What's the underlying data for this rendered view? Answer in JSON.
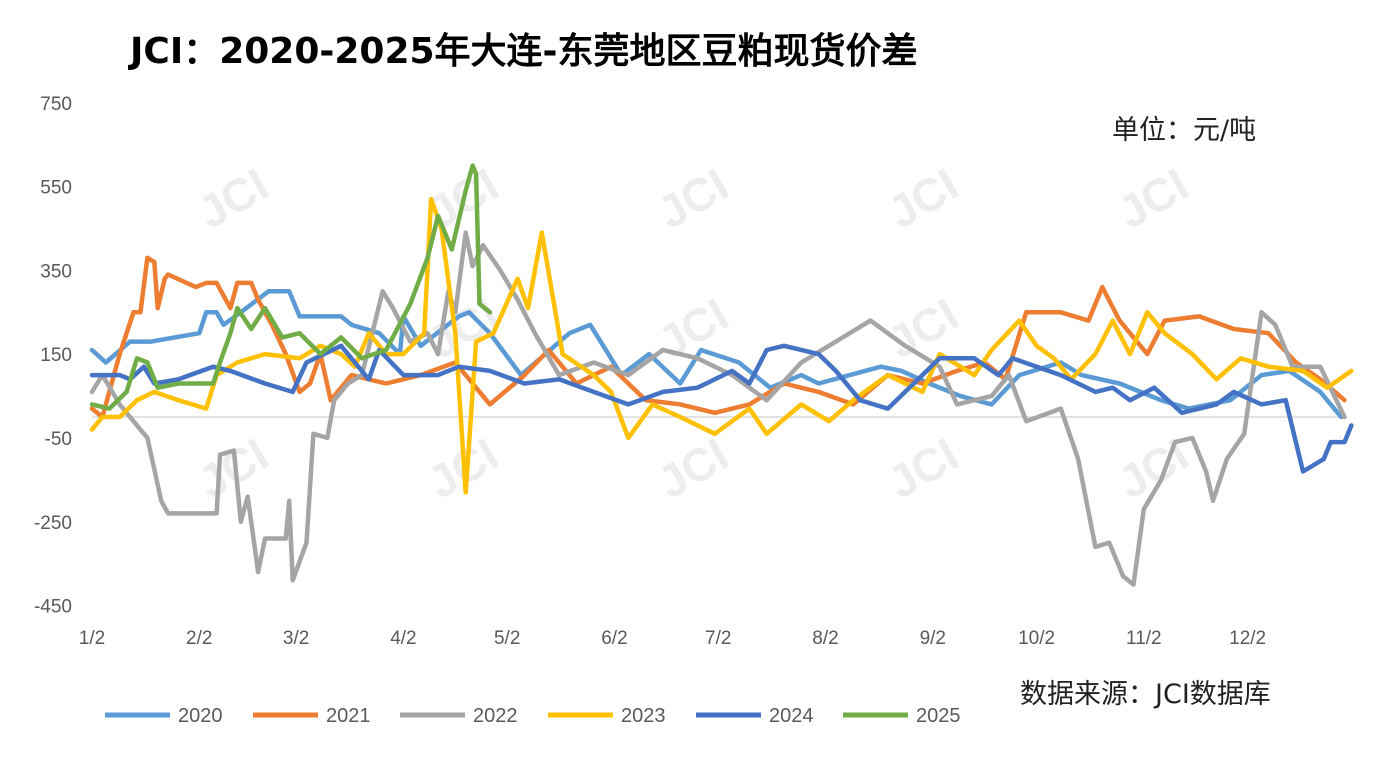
{
  "chart_data": {
    "type": "line",
    "title": "JCI：2020-2025年大连-东莞地区豆粕现货价差",
    "unit_label": "单位：元/吨",
    "source": "数据来源：JCI数据库",
    "watermark": "JCI",
    "xlabel": "",
    "ylabel": "",
    "ylim": [
      -450,
      750
    ],
    "yticks": [
      750,
      550,
      350,
      150,
      -50,
      -250,
      -450
    ],
    "xlim": [
      0,
      364
    ],
    "xticks": [
      {
        "label": "1/2",
        "day": 0
      },
      {
        "label": "2/2",
        "day": 31
      },
      {
        "label": "3/2",
        "day": 59
      },
      {
        "label": "4/2",
        "day": 90
      },
      {
        "label": "5/2",
        "day": 120
      },
      {
        "label": "6/2",
        "day": 151
      },
      {
        "label": "7/2",
        "day": 181
      },
      {
        "label": "8/2",
        "day": 212
      },
      {
        "label": "9/2",
        "day": 243
      },
      {
        "label": "10/2",
        "day": 273
      },
      {
        "label": "11/2",
        "day": 304
      },
      {
        "label": "12/2",
        "day": 334
      }
    ],
    "legend_position": "bottom",
    "series": [
      {
        "name": "2020",
        "color": "#5B9BD5",
        "points": [
          [
            0,
            160
          ],
          [
            4,
            130
          ],
          [
            11,
            180
          ],
          [
            17,
            180
          ],
          [
            31,
            200
          ],
          [
            33,
            250
          ],
          [
            36,
            250
          ],
          [
            38,
            220
          ],
          [
            43,
            250
          ],
          [
            51,
            300
          ],
          [
            57,
            300
          ],
          [
            60,
            240
          ],
          [
            72,
            240
          ],
          [
            75,
            220
          ],
          [
            83,
            200
          ],
          [
            89,
            150
          ],
          [
            90,
            240
          ],
          [
            95,
            170
          ],
          [
            106,
            240
          ],
          [
            109,
            250
          ],
          [
            115,
            200
          ],
          [
            124,
            100
          ],
          [
            138,
            200
          ],
          [
            144,
            220
          ],
          [
            153,
            100
          ],
          [
            161,
            150
          ],
          [
            170,
            80
          ],
          [
            176,
            160
          ],
          [
            187,
            130
          ],
          [
            196,
            70
          ],
          [
            205,
            100
          ],
          [
            210,
            80
          ],
          [
            219,
            100
          ],
          [
            228,
            120
          ],
          [
            234,
            110
          ],
          [
            242,
            80
          ],
          [
            251,
            50
          ],
          [
            260,
            30
          ],
          [
            268,
            100
          ],
          [
            280,
            130
          ],
          [
            286,
            100
          ],
          [
            297,
            80
          ],
          [
            309,
            40
          ],
          [
            317,
            20
          ],
          [
            329,
            40
          ],
          [
            338,
            100
          ],
          [
            346,
            110
          ],
          [
            355,
            60
          ],
          [
            361,
            0
          ]
        ]
      },
      {
        "name": "2021",
        "color": "#ED7D31",
        "points": [
          [
            0,
            20
          ],
          [
            3,
            0
          ],
          [
            8,
            150
          ],
          [
            12,
            250
          ],
          [
            14,
            250
          ],
          [
            16,
            380
          ],
          [
            18,
            370
          ],
          [
            19,
            260
          ],
          [
            21,
            330
          ],
          [
            22,
            340
          ],
          [
            30,
            310
          ],
          [
            33,
            320
          ],
          [
            36,
            320
          ],
          [
            40,
            260
          ],
          [
            42,
            320
          ],
          [
            46,
            320
          ],
          [
            48,
            280
          ],
          [
            52,
            220
          ],
          [
            56,
            150
          ],
          [
            60,
            60
          ],
          [
            63,
            80
          ],
          [
            66,
            150
          ],
          [
            69,
            40
          ],
          [
            75,
            100
          ],
          [
            85,
            80
          ],
          [
            95,
            100
          ],
          [
            105,
            130
          ],
          [
            115,
            30
          ],
          [
            125,
            100
          ],
          [
            132,
            160
          ],
          [
            140,
            80
          ],
          [
            150,
            120
          ],
          [
            160,
            40
          ],
          [
            170,
            30
          ],
          [
            180,
            10
          ],
          [
            190,
            30
          ],
          [
            200,
            80
          ],
          [
            210,
            60
          ],
          [
            220,
            30
          ],
          [
            230,
            100
          ],
          [
            240,
            80
          ],
          [
            250,
            110
          ],
          [
            258,
            130
          ],
          [
            264,
            90
          ],
          [
            270,
            250
          ],
          [
            280,
            250
          ],
          [
            288,
            230
          ],
          [
            292,
            310
          ],
          [
            297,
            230
          ],
          [
            305,
            150
          ],
          [
            310,
            230
          ],
          [
            320,
            240
          ],
          [
            330,
            210
          ],
          [
            340,
            200
          ],
          [
            348,
            130
          ],
          [
            355,
            90
          ],
          [
            362,
            40
          ]
        ]
      },
      {
        "name": "2022",
        "color": "#A5A5A5",
        "points": [
          [
            0,
            60
          ],
          [
            3,
            100
          ],
          [
            8,
            30
          ],
          [
            14,
            -30
          ],
          [
            16,
            -50
          ],
          [
            20,
            -200
          ],
          [
            22,
            -230
          ],
          [
            36,
            -230
          ],
          [
            37,
            -90
          ],
          [
            41,
            -80
          ],
          [
            43,
            -250
          ],
          [
            45,
            -190
          ],
          [
            48,
            -370
          ],
          [
            50,
            -290
          ],
          [
            56,
            -290
          ],
          [
            57,
            -200
          ],
          [
            58,
            -390
          ],
          [
            62,
            -300
          ],
          [
            64,
            -40
          ],
          [
            68,
            -50
          ],
          [
            70,
            40
          ],
          [
            74,
            80
          ],
          [
            78,
            100
          ],
          [
            84,
            300
          ],
          [
            87,
            260
          ],
          [
            92,
            180
          ],
          [
            97,
            200
          ],
          [
            100,
            150
          ],
          [
            103,
            300
          ],
          [
            105,
            250
          ],
          [
            108,
            440
          ],
          [
            110,
            360
          ],
          [
            113,
            410
          ],
          [
            118,
            350
          ],
          [
            123,
            280
          ],
          [
            128,
            200
          ],
          [
            135,
            100
          ],
          [
            145,
            130
          ],
          [
            155,
            100
          ],
          [
            165,
            160
          ],
          [
            175,
            140
          ],
          [
            185,
            100
          ],
          [
            195,
            40
          ],
          [
            205,
            130
          ],
          [
            215,
            180
          ],
          [
            225,
            230
          ],
          [
            235,
            170
          ],
          [
            245,
            120
          ],
          [
            250,
            30
          ],
          [
            260,
            50
          ],
          [
            265,
            100
          ],
          [
            270,
            -10
          ],
          [
            280,
            20
          ],
          [
            285,
            -100
          ],
          [
            290,
            -310
          ],
          [
            294,
            -300
          ],
          [
            298,
            -380
          ],
          [
            301,
            -400
          ],
          [
            304,
            -220
          ],
          [
            309,
            -150
          ],
          [
            313,
            -60
          ],
          [
            318,
            -50
          ],
          [
            322,
            -130
          ],
          [
            324,
            -200
          ],
          [
            328,
            -100
          ],
          [
            333,
            -40
          ],
          [
            338,
            250
          ],
          [
            342,
            220
          ],
          [
            347,
            120
          ],
          [
            355,
            120
          ],
          [
            362,
            0
          ]
        ]
      },
      {
        "name": "2023",
        "color": "#FFC000",
        "points": [
          [
            0,
            -30
          ],
          [
            3,
            0
          ],
          [
            8,
            0
          ],
          [
            13,
            40
          ],
          [
            18,
            60
          ],
          [
            25,
            40
          ],
          [
            33,
            20
          ],
          [
            36,
            100
          ],
          [
            42,
            130
          ],
          [
            50,
            150
          ],
          [
            60,
            140
          ],
          [
            66,
            170
          ],
          [
            72,
            150
          ],
          [
            76,
            120
          ],
          [
            80,
            200
          ],
          [
            85,
            150
          ],
          [
            90,
            150
          ],
          [
            96,
            200
          ],
          [
            98,
            520
          ],
          [
            101,
            450
          ],
          [
            105,
            200
          ],
          [
            108,
            -180
          ],
          [
            111,
            180
          ],
          [
            116,
            200
          ],
          [
            123,
            330
          ],
          [
            126,
            260
          ],
          [
            130,
            440
          ],
          [
            136,
            150
          ],
          [
            145,
            100
          ],
          [
            150,
            60
          ],
          [
            155,
            -50
          ],
          [
            162,
            30
          ],
          [
            170,
            0
          ],
          [
            180,
            -40
          ],
          [
            190,
            20
          ],
          [
            195,
            -40
          ],
          [
            205,
            30
          ],
          [
            213,
            -10
          ],
          [
            220,
            40
          ],
          [
            230,
            100
          ],
          [
            240,
            60
          ],
          [
            245,
            150
          ],
          [
            255,
            100
          ],
          [
            260,
            160
          ],
          [
            268,
            230
          ],
          [
            273,
            170
          ],
          [
            278,
            140
          ],
          [
            283,
            90
          ],
          [
            290,
            150
          ],
          [
            295,
            230
          ],
          [
            300,
            150
          ],
          [
            305,
            250
          ],
          [
            310,
            200
          ],
          [
            318,
            150
          ],
          [
            325,
            90
          ],
          [
            332,
            140
          ],
          [
            340,
            120
          ],
          [
            350,
            110
          ],
          [
            357,
            70
          ],
          [
            364,
            110
          ]
        ]
      },
      {
        "name": "2024",
        "color": "#4472C4",
        "points": [
          [
            0,
            100
          ],
          [
            8,
            100
          ],
          [
            11,
            90
          ],
          [
            15,
            120
          ],
          [
            18,
            80
          ],
          [
            25,
            90
          ],
          [
            35,
            120
          ],
          [
            40,
            110
          ],
          [
            50,
            80
          ],
          [
            58,
            60
          ],
          [
            62,
            130
          ],
          [
            72,
            170
          ],
          [
            80,
            90
          ],
          [
            83,
            160
          ],
          [
            90,
            100
          ],
          [
            100,
            100
          ],
          [
            106,
            120
          ],
          [
            115,
            110
          ],
          [
            125,
            80
          ],
          [
            135,
            90
          ],
          [
            145,
            60
          ],
          [
            155,
            30
          ],
          [
            165,
            60
          ],
          [
            175,
            70
          ],
          [
            185,
            110
          ],
          [
            190,
            80
          ],
          [
            195,
            160
          ],
          [
            200,
            170
          ],
          [
            210,
            150
          ],
          [
            215,
            110
          ],
          [
            222,
            40
          ],
          [
            230,
            20
          ],
          [
            235,
            60
          ],
          [
            245,
            140
          ],
          [
            255,
            140
          ],
          [
            262,
            100
          ],
          [
            266,
            140
          ],
          [
            280,
            100
          ],
          [
            290,
            60
          ],
          [
            295,
            70
          ],
          [
            300,
            40
          ],
          [
            307,
            70
          ],
          [
            315,
            10
          ],
          [
            325,
            30
          ],
          [
            330,
            60
          ],
          [
            338,
            30
          ],
          [
            345,
            40
          ],
          [
            350,
            -130
          ],
          [
            356,
            -100
          ],
          [
            358,
            -60
          ],
          [
            362,
            -60
          ],
          [
            364,
            -20
          ]
        ]
      },
      {
        "name": "2025",
        "color": "#70AD47",
        "points": [
          [
            0,
            30
          ],
          [
            5,
            20
          ],
          [
            10,
            60
          ],
          [
            13,
            140
          ],
          [
            16,
            130
          ],
          [
            19,
            70
          ],
          [
            25,
            80
          ],
          [
            35,
            80
          ],
          [
            37,
            130
          ],
          [
            40,
            200
          ],
          [
            42,
            260
          ],
          [
            46,
            210
          ],
          [
            50,
            260
          ],
          [
            55,
            190
          ],
          [
            60,
            200
          ],
          [
            66,
            150
          ],
          [
            72,
            190
          ],
          [
            78,
            140
          ],
          [
            85,
            160
          ],
          [
            92,
            270
          ],
          [
            97,
            380
          ],
          [
            100,
            480
          ],
          [
            104,
            400
          ],
          [
            108,
            540
          ],
          [
            110,
            600
          ],
          [
            111,
            580
          ],
          [
            112,
            270
          ],
          [
            115,
            250
          ]
        ]
      }
    ]
  }
}
